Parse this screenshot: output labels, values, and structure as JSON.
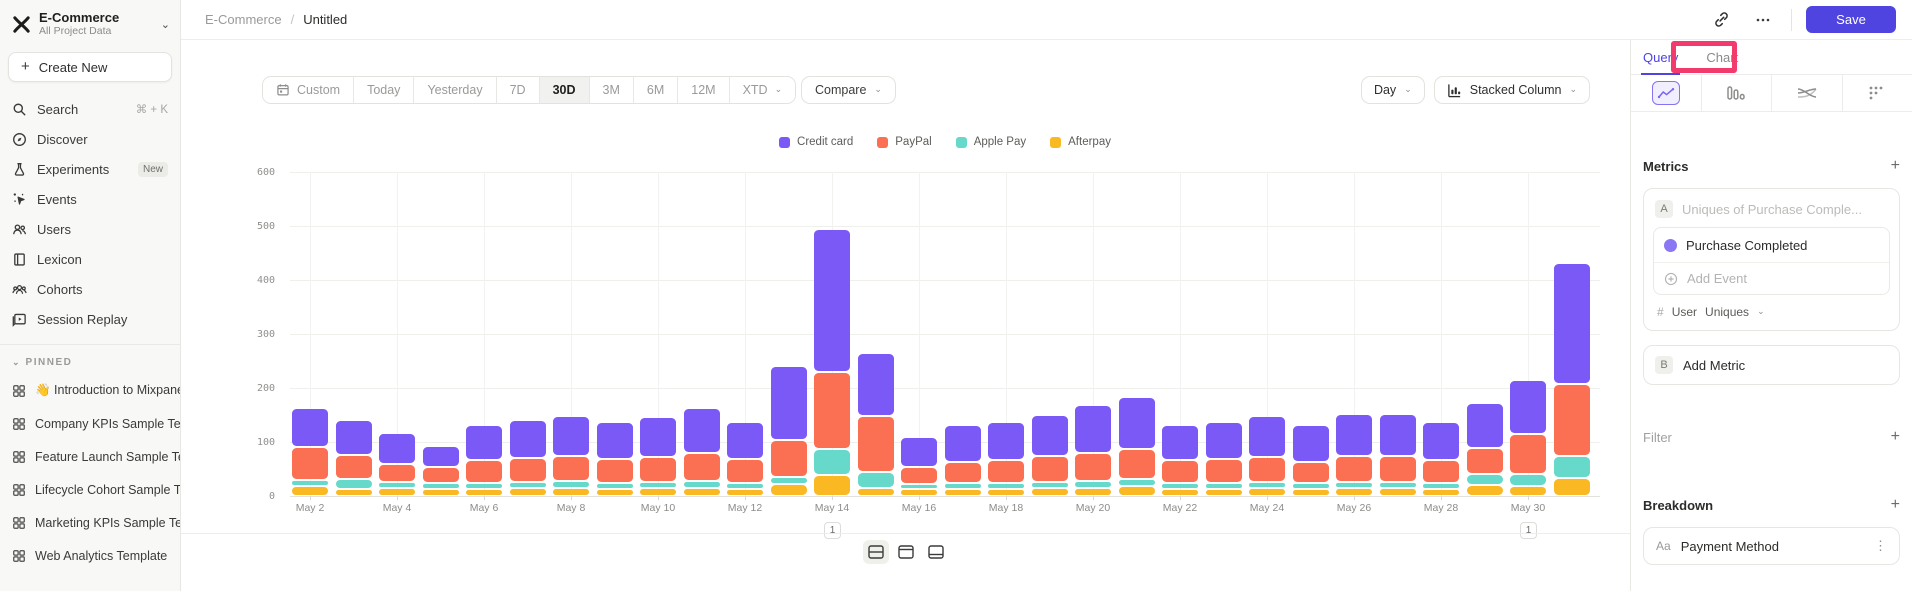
{
  "app": {
    "project_name": "E-Commerce",
    "project_subtitle": "All Project Data"
  },
  "sidebar": {
    "create_new_label": "Create New",
    "items": [
      {
        "label": "Search",
        "shortcut": "⌘ + K"
      },
      {
        "label": "Discover"
      },
      {
        "label": "Experiments",
        "badge": "New"
      },
      {
        "label": "Events"
      },
      {
        "label": "Users"
      },
      {
        "label": "Lexicon"
      },
      {
        "label": "Cohorts"
      },
      {
        "label": "Session Replay"
      }
    ],
    "pinned_label": "PINNED",
    "pinned_items": [
      {
        "label": "👋 Introduction to Mixpanel Bo"
      },
      {
        "label": "Company KPIs Sample Templat"
      },
      {
        "label": "Feature Launch Sample Templa"
      },
      {
        "label": "Lifecycle Cohort Sample Temp"
      },
      {
        "label": "Marketing KPIs Sample Templat"
      },
      {
        "label": "Web Analytics Template"
      }
    ]
  },
  "header": {
    "breadcrumb_project": "E-Commerce",
    "breadcrumb_separator": "/",
    "breadcrumb_page": "Untitled",
    "save_label": "Save"
  },
  "toolbar": {
    "ranges": [
      "Custom",
      "Today",
      "Yesterday",
      "7D",
      "30D",
      "3M",
      "6M",
      "12M",
      "XTD"
    ],
    "active_range": "30D",
    "compare_label": "Compare",
    "granularity_label": "Day",
    "chart_type_label": "Stacked Column"
  },
  "chart_data": {
    "type": "bar",
    "stacked": true,
    "title": "",
    "xlabel": "",
    "ylabel": "",
    "ylim": [
      0,
      600
    ],
    "yticks": [
      0,
      100,
      200,
      300,
      400,
      500,
      600
    ],
    "grid": true,
    "legend_position": "top",
    "x": [
      "May 2",
      "May 3",
      "May 4",
      "May 5",
      "May 6",
      "May 7",
      "May 8",
      "May 9",
      "May 10",
      "May 11",
      "May 12",
      "May 13",
      "May 14",
      "May 15",
      "May 16",
      "May 17",
      "May 18",
      "May 19",
      "May 20",
      "May 21",
      "May 22",
      "May 23",
      "May 24",
      "May 25",
      "May 26",
      "May 27",
      "May 28",
      "May 29",
      "May 30",
      "May 31"
    ],
    "x_labels_shown": [
      "May 2",
      "May 4",
      "May 6",
      "May 8",
      "May 10",
      "May 12",
      "May 14",
      "May 16",
      "May 18",
      "May 20",
      "May 22",
      "May 24",
      "May 26",
      "May 28",
      "May 30"
    ],
    "series": [
      {
        "name": "Credit card",
        "color": "#7a59f6",
        "values": [
          69,
          62,
          53,
          35,
          62,
          67,
          70,
          65,
          71,
          79,
          65,
          134,
          261,
          113,
          52,
          65,
          66,
          73,
          85,
          92,
          62,
          65,
          72,
          64,
          74,
          74,
          66,
          79,
          97,
          221
        ]
      },
      {
        "name": "PayPal",
        "color": "#fb7053",
        "values": [
          57,
          40,
          30,
          26,
          38,
          40,
          42,
          40,
          42,
          48,
          40,
          65,
          139,
          100,
          28,
          35,
          38,
          45,
          48,
          52,
          38,
          40,
          42,
          36,
          44,
          44,
          38,
          45,
          71,
          129
        ]
      },
      {
        "name": "Apple Pay",
        "color": "#66d9cb",
        "values": [
          8,
          15,
          8,
          8,
          8,
          8,
          10,
          8,
          8,
          10,
          8,
          10,
          44,
          25,
          6,
          8,
          8,
          8,
          10,
          10,
          8,
          8,
          8,
          8,
          8,
          8,
          8,
          17,
          19,
          37
        ]
      },
      {
        "name": "Afterpay",
        "color": "#fab823",
        "values": [
          15,
          10,
          12,
          10,
          10,
          12,
          12,
          10,
          12,
          12,
          10,
          18,
          35,
          12,
          10,
          10,
          10,
          12,
          12,
          14,
          10,
          10,
          12,
          10,
          12,
          12,
          10,
          17,
          14,
          29
        ]
      }
    ],
    "annotations": [
      {
        "x": "May 14",
        "label": "1"
      },
      {
        "x": "May 30",
        "label": "1"
      }
    ]
  },
  "right_panel": {
    "tabs": [
      {
        "label": "Query"
      },
      {
        "label": "Chart"
      }
    ],
    "active_tab": "Query",
    "highlight_color": "#f23a6d",
    "metrics": {
      "title": "Metrics",
      "metric_a": {
        "badge": "A",
        "placeholder": "Uniques of Purchase Comple...",
        "event_name": "Purchase Completed",
        "add_event_label": "Add Event",
        "agg_prefix": "#",
        "agg_entity": "User",
        "agg_type": "Uniques"
      },
      "metric_b": {
        "badge": "B",
        "label": "Add Metric"
      }
    },
    "filter": {
      "title": "Filter"
    },
    "breakdown": {
      "title": "Breakdown",
      "property": {
        "type_prefix": "Aa",
        "label": "Payment Method"
      }
    }
  },
  "colors": {
    "accent": "#4f44e0",
    "annotation_pink": "#f23a6d"
  }
}
